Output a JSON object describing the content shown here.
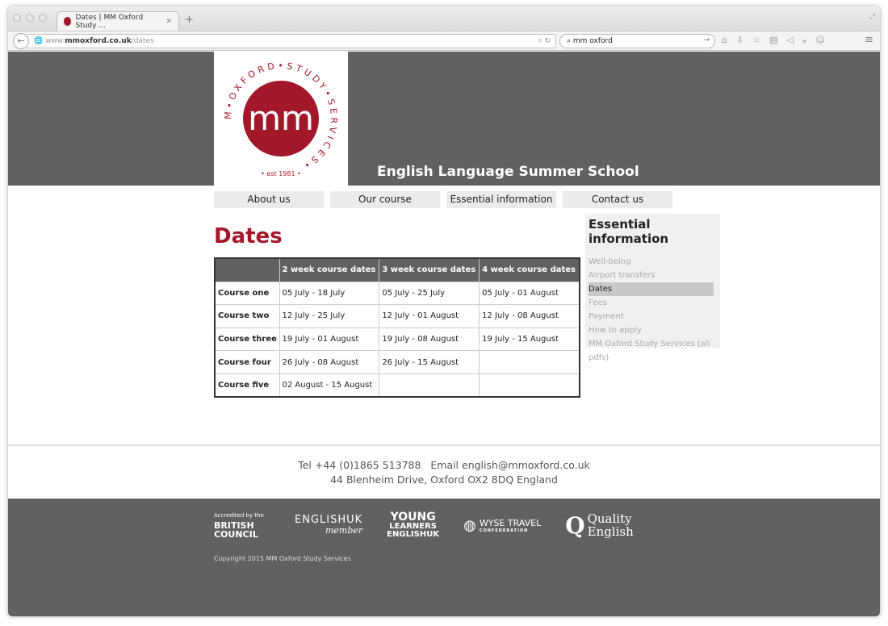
{
  "browser": {
    "tab_title": "Dates | MM Oxford Study ...",
    "url_prefix": "www.",
    "url_domain": "mmoxford.co.uk",
    "url_path": "/dates",
    "search_value": "mm oxford"
  },
  "header": {
    "title": "English Language Summer School",
    "logo_text": "MM OXFORD STUDY SERVICES est 1981",
    "logo_mark": "mm"
  },
  "nav": [
    "About us",
    "Our course",
    "Essential information",
    "Contact us"
  ],
  "main": {
    "heading": "Dates",
    "table": {
      "columns": [
        "",
        "2 week course dates",
        "3 week course dates",
        "4 week course dates"
      ],
      "rows": [
        [
          "Course one",
          "05 July - 18 July",
          "05 July - 25 July",
          "05 July - 01 August"
        ],
        [
          "Course two",
          "12 July - 25 July",
          "12 July - 01 August",
          "12 July - 08 August"
        ],
        [
          "Course three",
          "19 July - 01 August",
          "19 July - 08 August",
          "19 July - 15 August"
        ],
        [
          "Course four",
          "26 July - 08 August",
          "26 July - 15 August",
          ""
        ],
        [
          "Course five",
          "02 August - 15 August",
          "",
          ""
        ]
      ]
    }
  },
  "sidebar": {
    "title": "Essential information",
    "items": [
      "Well-being",
      "Airport transfers",
      "Dates",
      "Fees",
      "Payment",
      "How to apply",
      "MM Oxford Study Services (all pdfs)"
    ],
    "active": "Dates"
  },
  "footer": {
    "contact_line1": "Tel +44 (0)1865 513788   Email english@mmoxford.co.uk",
    "contact_line2": "44 Blenheim Drive, Oxford OX2 8DQ England",
    "logos": {
      "bc_small": "Accredited by the",
      "bc": "BRITISH COUNCIL",
      "euk": "ENGLISHUK",
      "euk_sub": "member",
      "yl1": "YOUNG",
      "yl2": "LEARNERS",
      "yl3": "ENGLISHUK",
      "wyse": "WYSE TRAVEL",
      "wyse_sub": "CONFEDERATION",
      "qe1": "Quality",
      "qe2": "English"
    },
    "copyright": "Copyright 2015 MM Oxford Study Services"
  },
  "colors": {
    "brand_red": "#a3172a",
    "header_gray": "#616161"
  }
}
